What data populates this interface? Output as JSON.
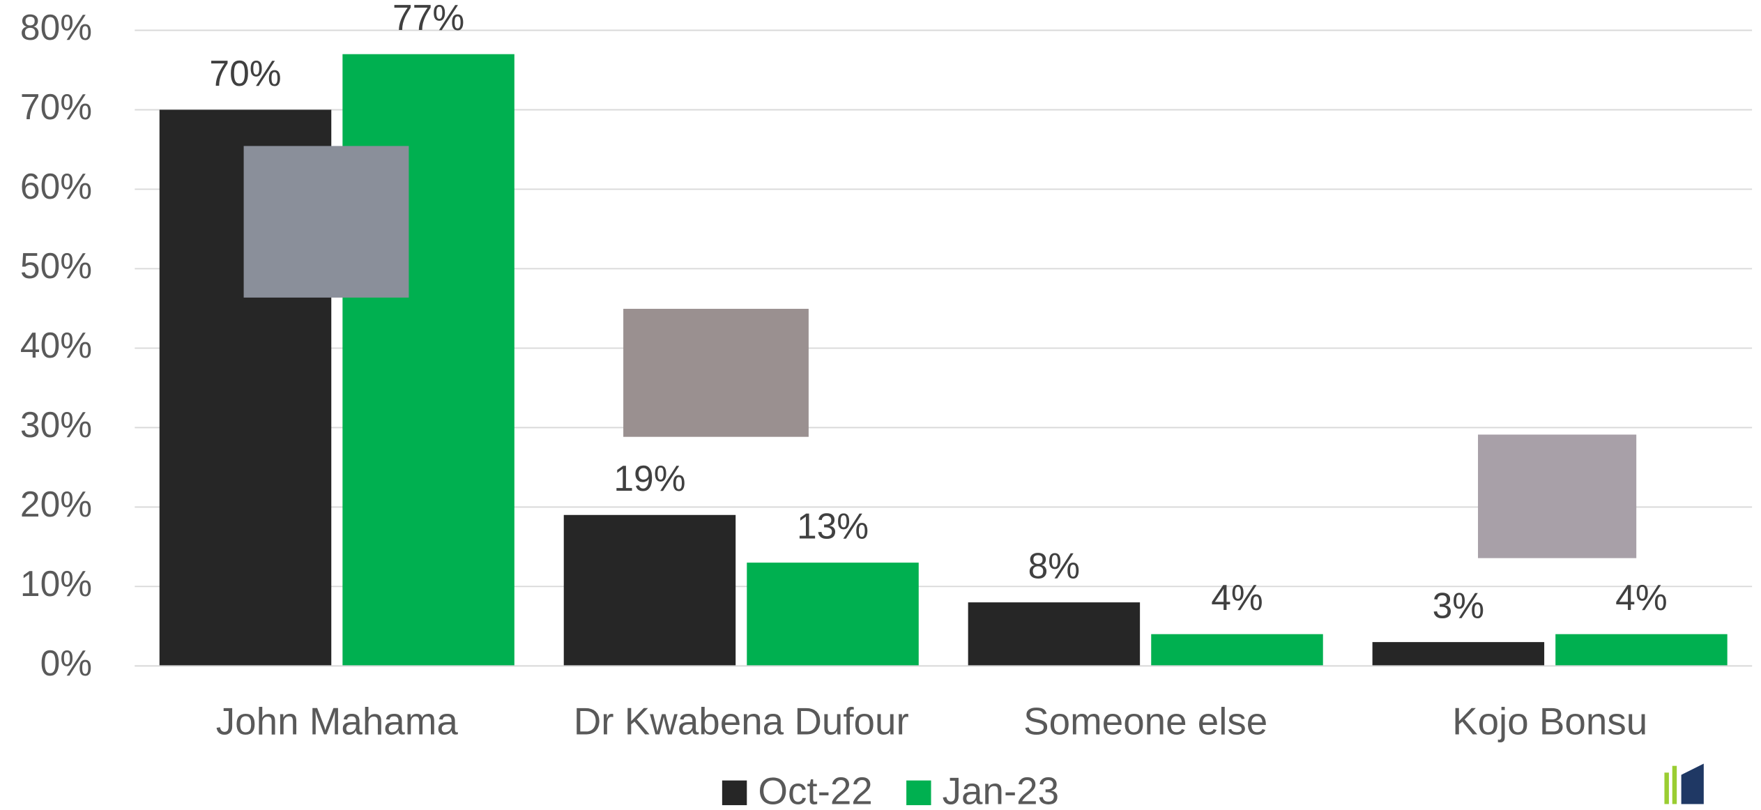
{
  "chart_data": {
    "type": "bar",
    "categories": [
      "John Mahama",
      "Dr Kwabena Dufour",
      "Someone else",
      "Kojo Bonsu"
    ],
    "series": [
      {
        "name": "Oct-22",
        "color": "#262626",
        "values": [
          70,
          19,
          8,
          3
        ],
        "value_labels": [
          "70%",
          "19%",
          "8%",
          "3%"
        ]
      },
      {
        "name": "Jan-23",
        "color": "#00b050",
        "values": [
          77,
          13,
          4,
          4
        ],
        "value_labels": [
          "77%",
          "13%",
          "4%",
          "4%"
        ]
      }
    ],
    "ylim": [
      0,
      80
    ],
    "yticks": [
      {
        "value": 0,
        "label": "0%"
      },
      {
        "value": 10,
        "label": "10%"
      },
      {
        "value": 20,
        "label": "20%"
      },
      {
        "value": 30,
        "label": "30%"
      },
      {
        "value": 40,
        "label": "40%"
      },
      {
        "value": 50,
        "label": "50%"
      },
      {
        "value": 60,
        "label": "60%"
      },
      {
        "value": 70,
        "label": "70%"
      },
      {
        "value": 80,
        "label": "80%"
      }
    ],
    "grid": true,
    "legend": "bottom"
  }
}
